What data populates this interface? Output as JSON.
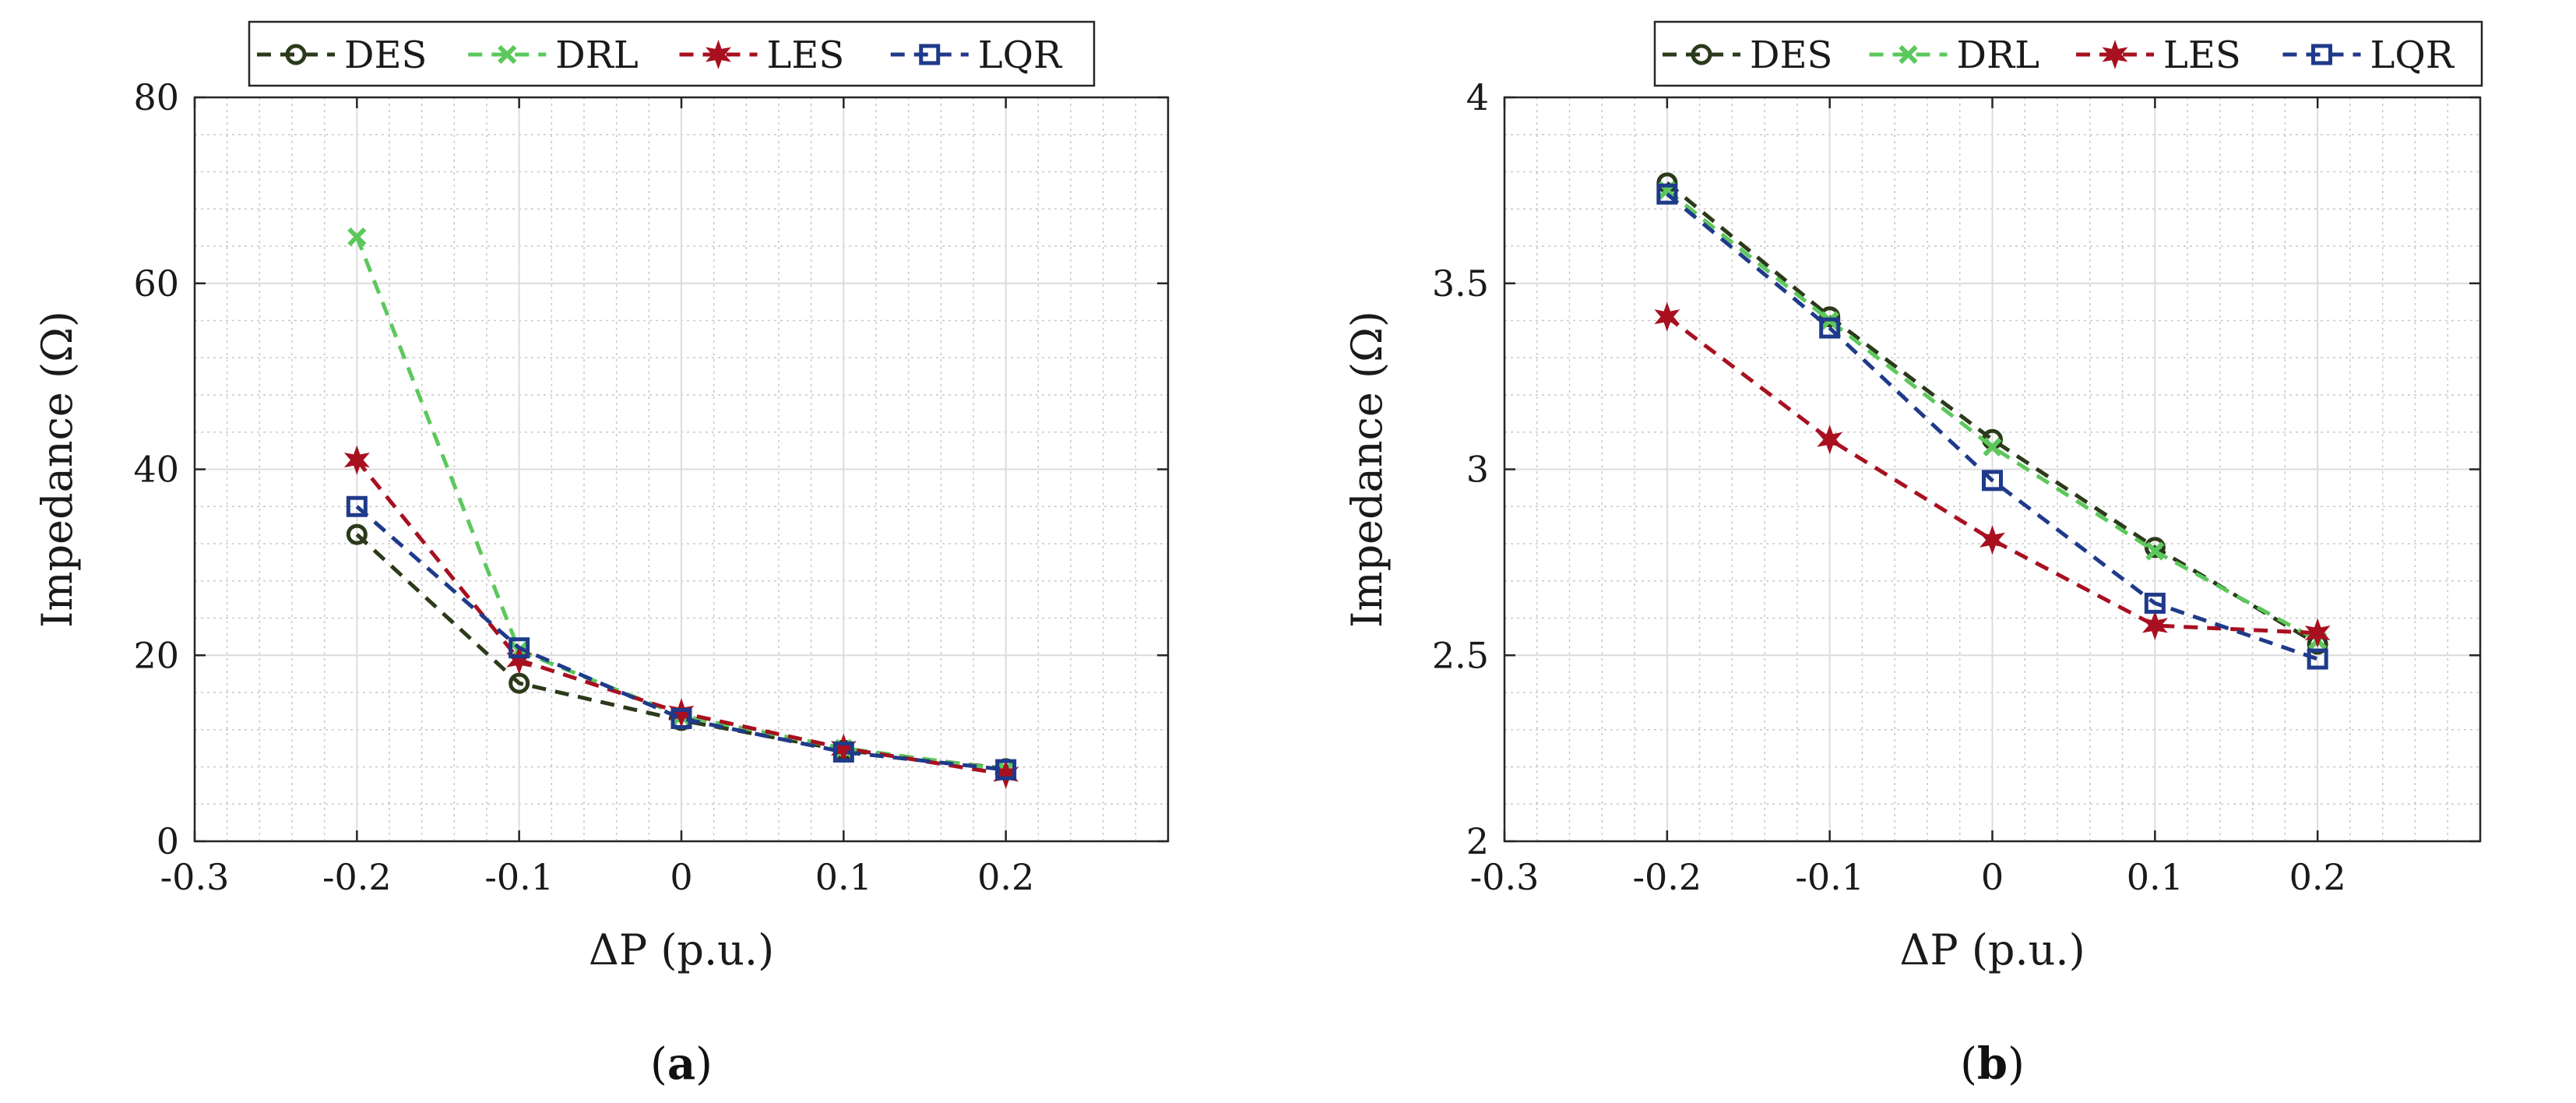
{
  "chart_data": [
    {
      "type": "line",
      "panel_label": "a",
      "caption_left": "(",
      "caption_right": ")",
      "xlabel": "ΔP (p.u.)",
      "ylabel": "Impedance (Ω)",
      "xlim": [
        -0.3,
        0.3
      ],
      "ylim": [
        0,
        80
      ],
      "xticks": [
        -0.3,
        -0.2,
        -0.1,
        0,
        0.1,
        0.2
      ],
      "xtick_labels": [
        "-0.3",
        "-0.2",
        "-0.1",
        "0",
        "0.1",
        "0.2"
      ],
      "yticks": [
        0,
        20,
        40,
        60,
        80
      ],
      "ytick_labels": [
        "0",
        "20",
        "40",
        "60",
        "80"
      ],
      "grid": true,
      "minor_grid": true,
      "legend_position": "top",
      "x": [
        -0.2,
        -0.1,
        0,
        0.1,
        0.2
      ],
      "series": [
        {
          "name": "DES",
          "values": [
            33.0,
            17.0,
            13.0,
            9.8,
            7.8
          ],
          "color": "#2b3a1a",
          "marker": "circle"
        },
        {
          "name": "DRL",
          "values": [
            65.0,
            20.5,
            13.5,
            10.0,
            7.7
          ],
          "color": "#5cc85c",
          "marker": "x"
        },
        {
          "name": "LES",
          "values": [
            41.0,
            19.5,
            13.8,
            10.0,
            7.2
          ],
          "color": "#a81020",
          "marker": "hexagram"
        },
        {
          "name": "LQR",
          "values": [
            36.0,
            20.8,
            13.2,
            9.6,
            7.7
          ],
          "color": "#1f3a8a",
          "marker": "square"
        }
      ]
    },
    {
      "type": "line",
      "panel_label": "b",
      "caption_left": "(",
      "caption_right": ")",
      "xlabel": "ΔP (p.u.)",
      "ylabel": "Impedance (Ω)",
      "xlim": [
        -0.3,
        0.3
      ],
      "ylim": [
        2,
        4
      ],
      "xticks": [
        -0.3,
        -0.2,
        -0.1,
        0,
        0.1,
        0.2
      ],
      "xtick_labels": [
        "-0.3",
        "-0.2",
        "-0.1",
        "0",
        "0.1",
        "0.2"
      ],
      "yticks": [
        2,
        2.5,
        3,
        3.5,
        4
      ],
      "ytick_labels": [
        "2",
        "2.5",
        "3",
        "3.5",
        "4"
      ],
      "grid": true,
      "minor_grid": true,
      "legend_position": "top",
      "x": [
        -0.2,
        -0.1,
        0,
        0.1,
        0.2
      ],
      "series": [
        {
          "name": "DES",
          "values": [
            3.77,
            3.41,
            3.08,
            2.79,
            2.53
          ],
          "color": "#2b3a1a",
          "marker": "circle"
        },
        {
          "name": "DRL",
          "values": [
            3.75,
            3.4,
            3.06,
            2.78,
            2.54
          ],
          "color": "#5cc85c",
          "marker": "x"
        },
        {
          "name": "LES",
          "values": [
            3.41,
            3.08,
            2.81,
            2.58,
            2.56
          ],
          "color": "#a81020",
          "marker": "hexagram"
        },
        {
          "name": "LQR",
          "values": [
            3.74,
            3.38,
            2.97,
            2.64,
            2.49
          ],
          "color": "#1f3a8a",
          "marker": "square"
        }
      ]
    }
  ]
}
